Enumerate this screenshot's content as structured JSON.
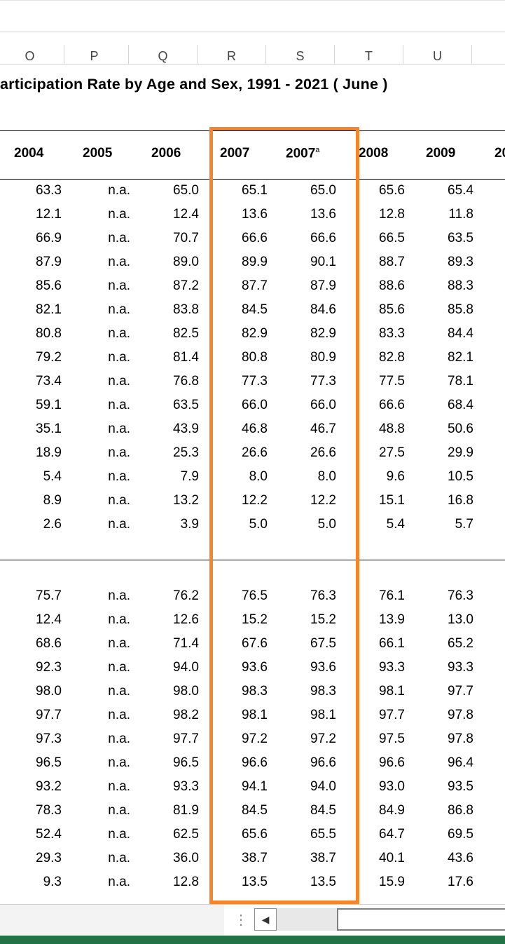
{
  "column_letters": [
    "O",
    "P",
    "Q",
    "R",
    "S",
    "T",
    "U"
  ],
  "title": "articipation  Rate by  Age  and  Sex, 1991 - 2021  ( June )",
  "year_headers": [
    {
      "year": "2004",
      "sup": ""
    },
    {
      "year": "2005",
      "sup": ""
    },
    {
      "year": "2006",
      "sup": ""
    },
    {
      "year": "2007",
      "sup": ""
    },
    {
      "year": "2007",
      "sup": "a"
    },
    {
      "year": "2008",
      "sup": ""
    },
    {
      "year": "2009",
      "sup": ""
    },
    {
      "year": "20",
      "sup": ""
    }
  ],
  "section1_rows": [
    [
      "63.3",
      "n.a.",
      "65.0",
      "65.1",
      "65.0",
      "65.6",
      "65.4"
    ],
    [
      "12.1",
      "n.a.",
      "12.4",
      "13.6",
      "13.6",
      "12.8",
      "11.8"
    ],
    [
      "66.9",
      "n.a.",
      "70.7",
      "66.6",
      "66.6",
      "66.5",
      "63.5"
    ],
    [
      "87.9",
      "n.a.",
      "89.0",
      "89.9",
      "90.1",
      "88.7",
      "89.3"
    ],
    [
      "85.6",
      "n.a.",
      "87.2",
      "87.7",
      "87.9",
      "88.6",
      "88.3"
    ],
    [
      "82.1",
      "n.a.",
      "83.8",
      "84.5",
      "84.6",
      "85.6",
      "85.8"
    ],
    [
      "80.8",
      "n.a.",
      "82.5",
      "82.9",
      "82.9",
      "83.3",
      "84.4"
    ],
    [
      "79.2",
      "n.a.",
      "81.4",
      "80.8",
      "80.9",
      "82.8",
      "82.1"
    ],
    [
      "73.4",
      "n.a.",
      "76.8",
      "77.3",
      "77.3",
      "77.5",
      "78.1"
    ],
    [
      "59.1",
      "n.a.",
      "63.5",
      "66.0",
      "66.0",
      "66.6",
      "68.4"
    ],
    [
      "35.1",
      "n.a.",
      "43.9",
      "46.8",
      "46.7",
      "48.8",
      "50.6"
    ],
    [
      "18.9",
      "n.a.",
      "25.3",
      "26.6",
      "26.6",
      "27.5",
      "29.9"
    ],
    [
      "5.4",
      "n.a.",
      "7.9",
      "8.0",
      "8.0",
      "9.6",
      "10.5"
    ],
    [
      "8.9",
      "n.a.",
      "13.2",
      "12.2",
      "12.2",
      "15.1",
      "16.8"
    ],
    [
      "2.6",
      "n.a.",
      "3.9",
      "5.0",
      "5.0",
      "5.4",
      "5.7"
    ]
  ],
  "section2_rows": [
    [
      "75.7",
      "n.a.",
      "76.2",
      "76.5",
      "76.3",
      "76.1",
      "76.3"
    ],
    [
      "12.4",
      "n.a.",
      "12.6",
      "15.2",
      "15.2",
      "13.9",
      "13.0"
    ],
    [
      "68.6",
      "n.a.",
      "71.4",
      "67.6",
      "67.5",
      "66.1",
      "65.2"
    ],
    [
      "92.3",
      "n.a.",
      "94.0",
      "93.6",
      "93.6",
      "93.3",
      "93.3"
    ],
    [
      "98.0",
      "n.a.",
      "98.0",
      "98.3",
      "98.3",
      "98.1",
      "97.7"
    ],
    [
      "97.7",
      "n.a.",
      "98.2",
      "98.1",
      "98.1",
      "97.7",
      "97.8"
    ],
    [
      "97.3",
      "n.a.",
      "97.7",
      "97.2",
      "97.2",
      "97.5",
      "97.8"
    ],
    [
      "96.5",
      "n.a.",
      "96.5",
      "96.6",
      "96.6",
      "96.6",
      "96.4"
    ],
    [
      "93.2",
      "n.a.",
      "93.3",
      "94.1",
      "94.0",
      "93.0",
      "93.5"
    ],
    [
      "78.3",
      "n.a.",
      "81.9",
      "84.5",
      "84.5",
      "84.9",
      "86.8"
    ],
    [
      "52.4",
      "n.a.",
      "62.5",
      "65.6",
      "65.5",
      "64.7",
      "69.5"
    ],
    [
      "29.3",
      "n.a.",
      "36.0",
      "38.7",
      "38.7",
      "40.1",
      "43.6"
    ],
    [
      "9.3",
      "n.a.",
      "12.8",
      "13.5",
      "13.5",
      "15.9",
      "17.6"
    ]
  ],
  "icons": {
    "grip": "vertical-dots-icon",
    "scroll_left": "scroll-left-arrow-icon"
  },
  "colors": {
    "highlight": "#f5842a",
    "status_bar": "#217346"
  }
}
